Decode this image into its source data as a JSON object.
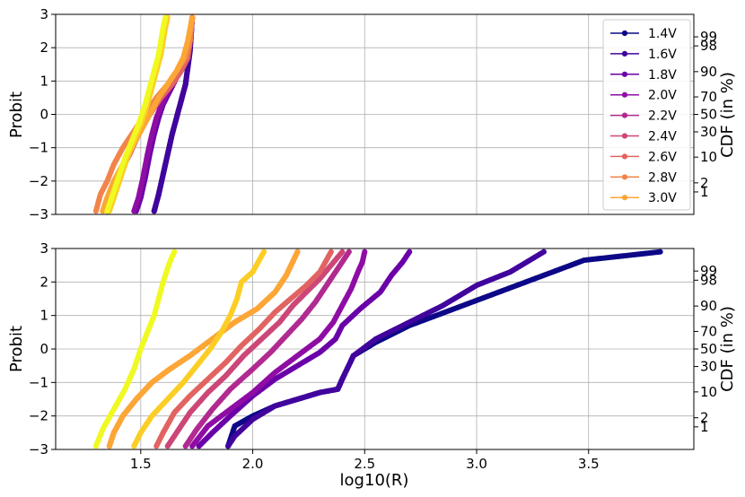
{
  "chart_data": [
    {
      "type": "line",
      "panel": "top",
      "xlim": [
        1.12,
        3.97
      ],
      "ylim": [
        -3,
        3
      ],
      "xlabel": "",
      "ylabel": "Probit",
      "secondary_ylabel": "CDF (in %)",
      "yticks": [
        "−3",
        "−2",
        "−1",
        "0",
        "1",
        "2",
        "3"
      ],
      "secondary_yticks": [
        {
          "label": "1",
          "probit": -2.326
        },
        {
          "label": "2",
          "probit": -2.054
        },
        {
          "label": "10",
          "probit": -1.282
        },
        {
          "label": "30",
          "probit": -0.524
        },
        {
          "label": "50",
          "probit": 0
        },
        {
          "label": "70",
          "probit": 0.524
        },
        {
          "label": "90",
          "probit": 1.282
        },
        {
          "label": "98",
          "probit": 2.054
        },
        {
          "label": "99",
          "probit": 2.326
        }
      ],
      "grid": true,
      "legend_position": "top-right",
      "series": [
        {
          "name": "1.4V",
          "color": "#0d0887",
          "x": [
            1.56,
            1.58,
            1.6,
            1.62,
            1.64,
            1.66,
            1.68,
            1.7,
            1.71,
            1.72,
            1.725,
            1.73
          ],
          "y": [
            -2.9,
            -2.4,
            -1.8,
            -1.2,
            -0.6,
            -0.1,
            0.4,
            0.9,
            1.4,
            1.9,
            2.4,
            2.9
          ]
        },
        {
          "name": "1.6V",
          "color": "#41049d",
          "x": [
            1.56,
            1.58,
            1.6,
            1.62,
            1.64,
            1.66,
            1.68,
            1.7,
            1.71,
            1.72,
            1.725,
            1.73
          ],
          "y": [
            -2.9,
            -2.4,
            -1.8,
            -1.2,
            -0.6,
            -0.1,
            0.4,
            0.9,
            1.4,
            1.9,
            2.4,
            2.9
          ]
        },
        {
          "name": "1.8V",
          "color": "#6a00a8",
          "x": [
            1.48,
            1.5,
            1.52,
            1.54,
            1.56,
            1.58,
            1.6,
            1.63,
            1.66,
            1.69,
            1.71,
            1.72,
            1.73
          ],
          "y": [
            -2.9,
            -2.5,
            -1.9,
            -1.2,
            -0.6,
            -0.1,
            0.3,
            0.7,
            1.1,
            1.5,
            1.9,
            2.4,
            2.9
          ]
        },
        {
          "name": "2.0V",
          "color": "#8f0da4",
          "x": [
            1.47,
            1.49,
            1.51,
            1.53,
            1.55,
            1.57,
            1.6,
            1.63,
            1.66,
            1.69,
            1.71,
            1.72,
            1.73
          ],
          "y": [
            -2.9,
            -2.5,
            -1.9,
            -1.2,
            -0.6,
            -0.1,
            0.4,
            0.8,
            1.2,
            1.6,
            2.0,
            2.5,
            2.9
          ]
        },
        {
          "name": "2.2V",
          "color": "#b12a90",
          "x": [
            1.35,
            1.36,
            1.38,
            1.41,
            1.45,
            1.49,
            1.54,
            1.59,
            1.64,
            1.68,
            1.71,
            1.72,
            1.73
          ],
          "y": [
            -2.9,
            -2.6,
            -2.2,
            -1.7,
            -1.2,
            -0.6,
            0.0,
            0.5,
            0.9,
            1.3,
            1.7,
            2.2,
            2.9
          ]
        },
        {
          "name": "2.4V",
          "color": "#cc4778",
          "x": [
            1.35,
            1.36,
            1.38,
            1.41,
            1.45,
            1.49,
            1.54,
            1.59,
            1.64,
            1.68,
            1.71,
            1.72,
            1.73
          ],
          "y": [
            -2.9,
            -2.6,
            -2.2,
            -1.7,
            -1.2,
            -0.6,
            0.0,
            0.5,
            0.9,
            1.3,
            1.7,
            2.2,
            2.9
          ]
        },
        {
          "name": "2.6V",
          "color": "#e16462",
          "x": [
            1.35,
            1.36,
            1.38,
            1.41,
            1.45,
            1.49,
            1.54,
            1.59,
            1.64,
            1.68,
            1.71,
            1.72,
            1.73
          ],
          "y": [
            -2.9,
            -2.6,
            -2.2,
            -1.7,
            -1.2,
            -0.6,
            0.0,
            0.5,
            0.9,
            1.3,
            1.7,
            2.2,
            2.9
          ]
        },
        {
          "name": "2.8V",
          "color": "#f2844b",
          "x": [
            1.3,
            1.32,
            1.35,
            1.38,
            1.42,
            1.47,
            1.52,
            1.57,
            1.62,
            1.66,
            1.7,
            1.72,
            1.73
          ],
          "y": [
            -2.9,
            -2.4,
            -2.0,
            -1.5,
            -1.0,
            -0.5,
            0.0,
            0.5,
            0.9,
            1.3,
            1.7,
            2.2,
            2.9
          ]
        },
        {
          "name": "3.0V",
          "color": "#fca636",
          "x": [
            1.33,
            1.35,
            1.38,
            1.42,
            1.46,
            1.5,
            1.54,
            1.58,
            1.62,
            1.66,
            1.69,
            1.71,
            1.73
          ],
          "y": [
            -2.9,
            -2.5,
            -2.0,
            -1.5,
            -1.0,
            -0.5,
            0.0,
            0.5,
            0.9,
            1.3,
            1.7,
            2.2,
            2.9
          ]
        },
        {
          "name": "",
          "color": "#fcce25",
          "x": [
            1.36,
            1.38,
            1.41,
            1.44,
            1.47,
            1.5,
            1.53,
            1.55,
            1.57,
            1.59,
            1.6,
            1.61,
            1.62
          ],
          "y": [
            -2.9,
            -2.5,
            -1.9,
            -1.3,
            -0.8,
            -0.3,
            0.3,
            0.8,
            1.3,
            1.8,
            2.2,
            2.6,
            2.9
          ]
        },
        {
          "name": "",
          "color": "#f0f921",
          "x": [
            1.35,
            1.37,
            1.4,
            1.43,
            1.46,
            1.49,
            1.52,
            1.54,
            1.56,
            1.58,
            1.59,
            1.6,
            1.61
          ],
          "y": [
            -2.9,
            -2.5,
            -1.9,
            -1.3,
            -0.8,
            -0.3,
            0.3,
            0.8,
            1.3,
            1.8,
            2.2,
            2.6,
            2.9
          ]
        }
      ],
      "legend": [
        "1.4V",
        "1.6V",
        "1.8V",
        "2.0V",
        "2.2V",
        "2.4V",
        "2.6V",
        "2.8V",
        "3.0V"
      ]
    },
    {
      "type": "line",
      "panel": "bottom",
      "xlim": [
        1.12,
        3.97
      ],
      "ylim": [
        -3,
        3
      ],
      "xlabel": "log10(R)",
      "ylabel": "Probit",
      "secondary_ylabel": "CDF (in %)",
      "xticks": [
        "1.5",
        "2.0",
        "2.5",
        "3.0",
        "3.5"
      ],
      "xtick_values": [
        1.5,
        2.0,
        2.5,
        3.0,
        3.5
      ],
      "yticks": [
        "−3",
        "−2",
        "−1",
        "0",
        "1",
        "2",
        "3"
      ],
      "secondary_yticks": [
        {
          "label": "1",
          "probit": -2.326
        },
        {
          "label": "2",
          "probit": -2.054
        },
        {
          "label": "10",
          "probit": -1.282
        },
        {
          "label": "30",
          "probit": -0.524
        },
        {
          "label": "50",
          "probit": 0
        },
        {
          "label": "70",
          "probit": 0.524
        },
        {
          "label": "90",
          "probit": 1.282
        },
        {
          "label": "98",
          "probit": 2.054
        },
        {
          "label": "99",
          "probit": 2.326
        }
      ],
      "grid": true,
      "series": [
        {
          "name": "1.4V",
          "color": "#0d0887",
          "x": [
            1.89,
            1.92,
            2.0,
            2.1,
            2.2,
            2.3,
            2.38,
            2.4,
            2.45,
            2.55,
            2.7,
            2.9,
            3.1,
            3.3,
            3.48,
            3.82
          ],
          "y": [
            -2.9,
            -2.3,
            -2.0,
            -1.7,
            -1.5,
            -1.3,
            -1.2,
            -0.9,
            -0.2,
            0.2,
            0.7,
            1.2,
            1.7,
            2.2,
            2.65,
            2.9
          ]
        },
        {
          "name": "1.6V",
          "color": "#41049d",
          "x": [
            1.89,
            1.92,
            2.0,
            2.1,
            2.2,
            2.3,
            2.38,
            2.4,
            2.45,
            2.55,
            2.7,
            2.85,
            3.0,
            3.15,
            3.3
          ],
          "y": [
            -2.9,
            -2.6,
            -2.1,
            -1.7,
            -1.5,
            -1.3,
            -1.2,
            -0.9,
            -0.2,
            0.3,
            0.8,
            1.3,
            1.9,
            2.3,
            2.9
          ]
        },
        {
          "name": "1.8V",
          "color": "#6a00a8",
          "x": [
            1.76,
            1.82,
            1.9,
            2.0,
            2.1,
            2.2,
            2.3,
            2.37,
            2.4,
            2.48,
            2.57,
            2.62,
            2.67,
            2.7
          ],
          "y": [
            -2.9,
            -2.5,
            -2.0,
            -1.4,
            -0.9,
            -0.5,
            -0.1,
            0.3,
            0.7,
            1.2,
            1.7,
            2.2,
            2.6,
            2.9
          ]
        },
        {
          "name": "2.0V",
          "color": "#8f0da4",
          "x": [
            1.73,
            1.8,
            1.9,
            2.0,
            2.1,
            2.2,
            2.3,
            2.36,
            2.4,
            2.44,
            2.47,
            2.49,
            2.5
          ],
          "y": [
            -2.9,
            -2.3,
            -1.8,
            -1.3,
            -0.7,
            -0.2,
            0.3,
            0.8,
            1.3,
            1.8,
            2.3,
            2.6,
            2.9
          ]
        },
        {
          "name": "2.2V",
          "color": "#b12a90",
          "x": [
            1.7,
            1.75,
            1.82,
            1.9,
            2.0,
            2.08,
            2.15,
            2.22,
            2.28,
            2.33,
            2.37,
            2.4,
            2.43
          ],
          "y": [
            -2.9,
            -2.4,
            -1.8,
            -1.2,
            -0.6,
            -0.1,
            0.4,
            0.9,
            1.4,
            1.9,
            2.3,
            2.6,
            2.9
          ]
        },
        {
          "name": "2.4V",
          "color": "#cc4778",
          "x": [
            1.62,
            1.66,
            1.72,
            1.8,
            1.88,
            1.96,
            2.04,
            2.12,
            2.18,
            2.24,
            2.3,
            2.35,
            2.4
          ],
          "y": [
            -2.9,
            -2.5,
            -1.9,
            -1.3,
            -0.8,
            -0.2,
            0.3,
            0.8,
            1.3,
            1.7,
            2.1,
            2.5,
            2.9
          ]
        },
        {
          "name": "2.6V",
          "color": "#e16462",
          "x": [
            1.57,
            1.6,
            1.65,
            1.72,
            1.8,
            1.88,
            1.95,
            2.03,
            2.1,
            2.17,
            2.24,
            2.3,
            2.35
          ],
          "y": [
            -2.9,
            -2.5,
            -1.9,
            -1.4,
            -0.9,
            -0.4,
            0.1,
            0.6,
            1.1,
            1.5,
            1.9,
            2.3,
            2.9
          ]
        },
        {
          "name": "2.8V",
          "color": "#f2844b",
          "x": [
            1.36,
            1.38,
            1.42,
            1.48,
            1.55,
            1.63,
            1.72,
            1.82,
            1.92,
            2.02,
            2.1,
            2.15,
            2.2
          ],
          "y": [
            -2.9,
            -2.5,
            -2.0,
            -1.5,
            -1.0,
            -0.6,
            -0.2,
            0.3,
            0.8,
            1.2,
            1.7,
            2.2,
            2.9
          ]
        },
        {
          "name": "3.0V",
          "color": "#fca636",
          "x": [
            1.36,
            1.38,
            1.42,
            1.48,
            1.55,
            1.63,
            1.72,
            1.82,
            1.92,
            2.02,
            2.1,
            2.15,
            2.2
          ],
          "y": [
            -2.9,
            -2.5,
            -2.0,
            -1.5,
            -1.0,
            -0.6,
            -0.2,
            0.3,
            0.8,
            1.2,
            1.7,
            2.2,
            2.9
          ]
        },
        {
          "name": "",
          "color": "#fcce25",
          "x": [
            1.47,
            1.5,
            1.55,
            1.62,
            1.69,
            1.75,
            1.81,
            1.86,
            1.9,
            1.93,
            1.95,
            2.0,
            2.05
          ],
          "y": [
            -2.9,
            -2.5,
            -2.0,
            -1.5,
            -1.0,
            -0.5,
            0.0,
            0.5,
            1.0,
            1.5,
            2.0,
            2.3,
            2.9
          ]
        },
        {
          "name": "",
          "color": "#f0f921",
          "x": [
            1.3,
            1.33,
            1.38,
            1.43,
            1.47,
            1.5,
            1.53,
            1.56,
            1.58,
            1.6,
            1.62,
            1.63,
            1.65
          ],
          "y": [
            -2.9,
            -2.4,
            -1.8,
            -1.2,
            -0.6,
            0.0,
            0.5,
            1.0,
            1.5,
            2.0,
            2.4,
            2.6,
            2.9
          ]
        }
      ]
    }
  ]
}
